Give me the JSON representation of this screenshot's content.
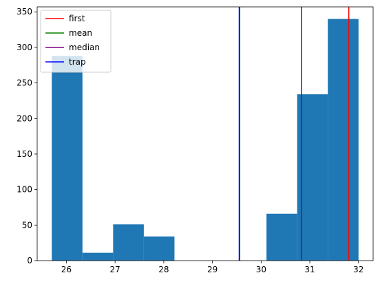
{
  "chart_data": {
    "type": "bar",
    "histogram": {
      "color": "#1f77b4",
      "bins": [
        {
          "x0": 25.7,
          "x1": 26.33,
          "count": 288
        },
        {
          "x0": 26.33,
          "x1": 26.96,
          "count": 11
        },
        {
          "x0": 26.96,
          "x1": 27.59,
          "count": 51
        },
        {
          "x0": 27.59,
          "x1": 28.22,
          "count": 34
        },
        {
          "x0": 28.22,
          "x1": 28.85,
          "count": 0
        },
        {
          "x0": 28.85,
          "x1": 29.48,
          "count": 0
        },
        {
          "x0": 29.48,
          "x1": 30.11,
          "count": 0
        },
        {
          "x0": 30.11,
          "x1": 30.74,
          "count": 66
        },
        {
          "x0": 30.74,
          "x1": 31.37,
          "count": 234
        },
        {
          "x0": 31.37,
          "x1": 32.0,
          "count": 340
        }
      ]
    },
    "vlines": [
      {
        "name": "first",
        "x": 31.8,
        "color": "#ff0000"
      },
      {
        "name": "mean",
        "x": 29.56,
        "color": "#008000"
      },
      {
        "name": "median",
        "x": 30.83,
        "color": "#800080"
      },
      {
        "name": "trap",
        "x": 29.55,
        "color": "#0000ff"
      }
    ],
    "xlim": [
      25.4,
      32.3
    ],
    "ylim": [
      0,
      357
    ],
    "xticks": [
      26,
      27,
      28,
      29,
      30,
      31,
      32
    ],
    "yticks": [
      0,
      50,
      100,
      150,
      200,
      250,
      300,
      350
    ],
    "title": "",
    "xlabel": "",
    "ylabel": "",
    "grid": false,
    "legend": {
      "placement": "top-left",
      "entries": [
        "first",
        "mean",
        "median",
        "trap"
      ]
    }
  }
}
